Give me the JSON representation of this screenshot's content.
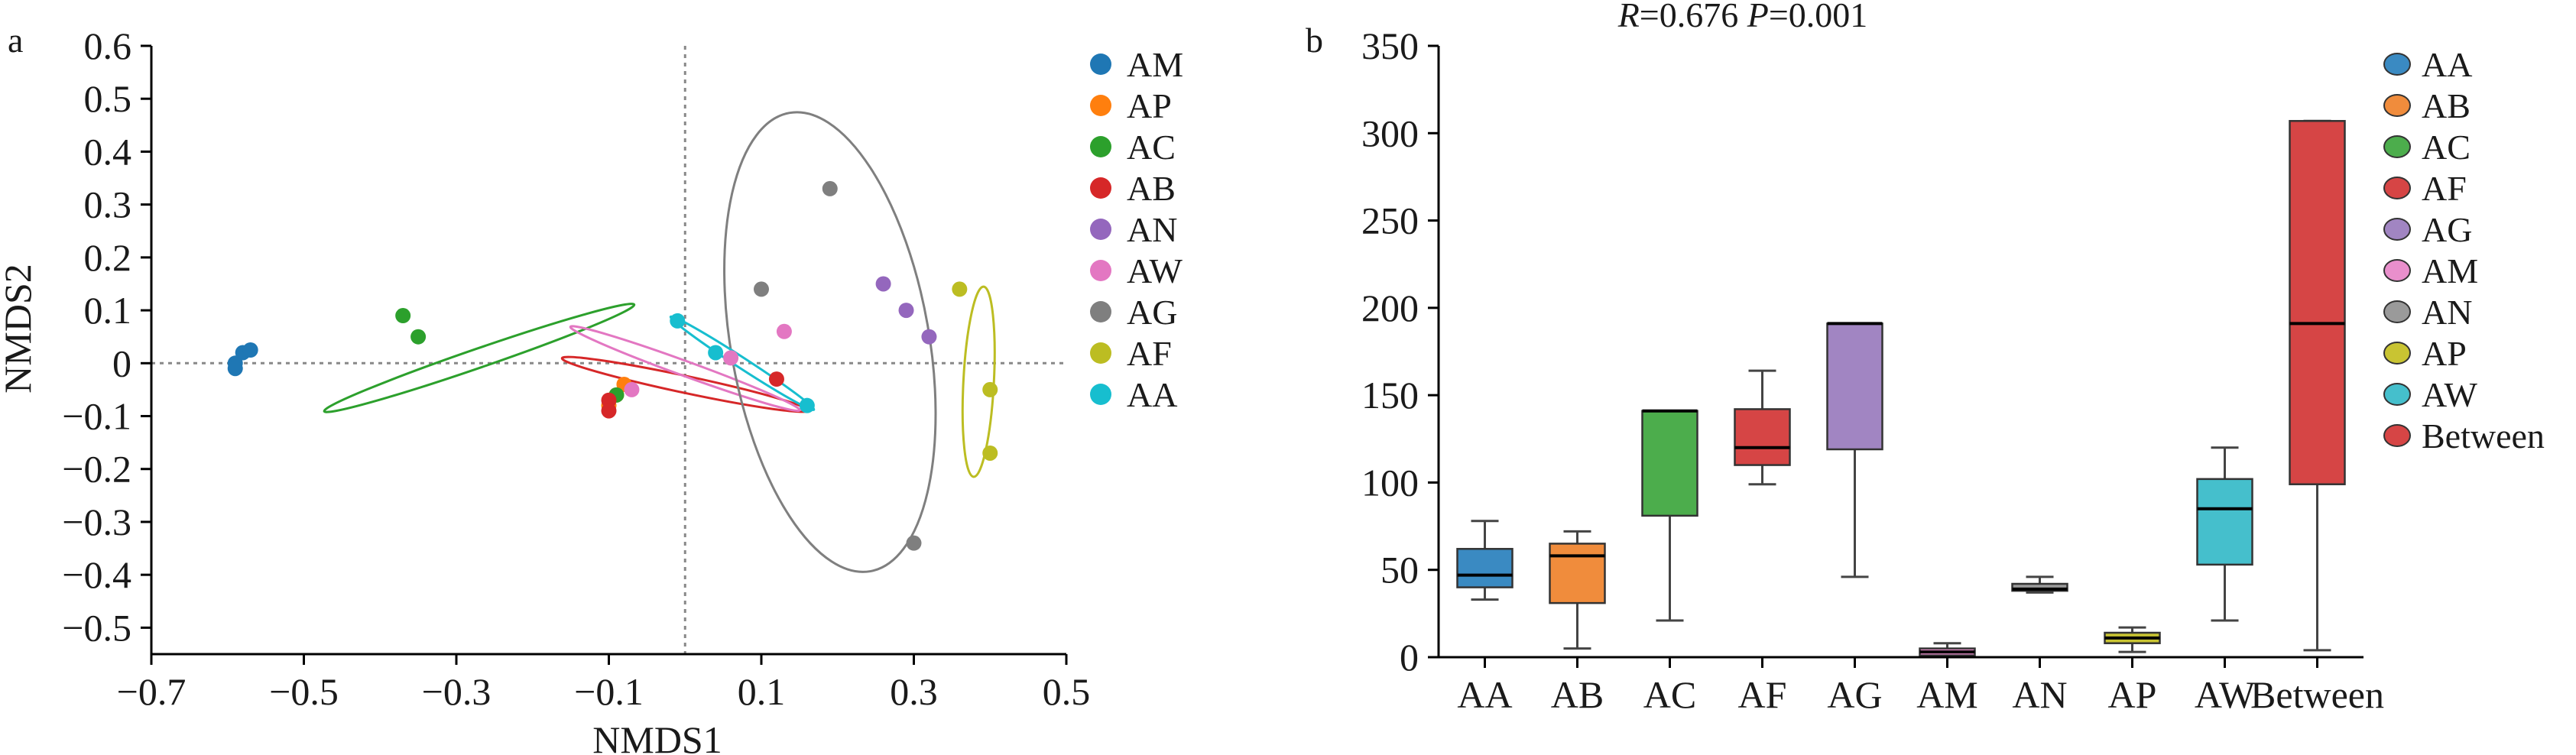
{
  "chart_data": [
    {
      "panel_label": "a",
      "type": "scatter",
      "xlabel": "NMDS1",
      "ylabel": "NMDS2",
      "xlim": [
        -0.7,
        0.5
      ],
      "ylim": [
        -0.55,
        0.6
      ],
      "xticks": [
        -0.7,
        -0.5,
        -0.3,
        -0.1,
        0.1,
        0.3,
        0.5
      ],
      "xtick_labels": [
        "−0.7",
        "−0.5",
        "−0.3",
        "−0.1",
        "0.1",
        "0.3",
        "0.5"
      ],
      "yticks": [
        0.6,
        0.5,
        0.4,
        0.3,
        0.2,
        0.1,
        0,
        -0.1,
        -0.2,
        -0.3,
        -0.4,
        -0.5
      ],
      "ytick_labels": [
        "0.6",
        "0.5",
        "0.4",
        "0.3",
        "0.2",
        "0.1",
        "0",
        "−0.1",
        "−0.2",
        "−0.3",
        "−0.4",
        "−0.5"
      ],
      "reference_lines": {
        "x": 0,
        "y": 0
      },
      "legend_position": "right",
      "series": [
        {
          "name": "AM",
          "color": "#1f77b4",
          "points": [
            [
              -0.58,
              0.02
            ],
            [
              -0.59,
              0.0
            ],
            [
              -0.59,
              -0.01
            ],
            [
              -0.57,
              0.025
            ]
          ],
          "ellipse": null
        },
        {
          "name": "AP",
          "color": "#ff7f0e",
          "points": [
            [
              -0.08,
              -0.04
            ],
            [
              -0.09,
              -0.06
            ],
            [
              -0.1,
              -0.08
            ]
          ],
          "ellipse": null
        },
        {
          "name": "AC",
          "color": "#2ca02c",
          "points": [
            [
              -0.37,
              0.09
            ],
            [
              -0.35,
              0.05
            ],
            [
              -0.09,
              -0.06
            ]
          ],
          "ellipse": {
            "cx": -0.27,
            "cy": 0.01,
            "rx": 0.215,
            "ry": 0.018,
            "angle_deg": 19
          }
        },
        {
          "name": "AB",
          "color": "#d62728",
          "points": [
            [
              -0.1,
              -0.07
            ],
            [
              -0.1,
              -0.09
            ],
            [
              0.12,
              -0.03
            ]
          ],
          "ellipse": {
            "cx": 0.0,
            "cy": -0.04,
            "rx": 0.165,
            "ry": 0.016,
            "angle_deg": -12
          }
        },
        {
          "name": "AN",
          "color": "#9467bd",
          "points": [
            [
              0.26,
              0.15
            ],
            [
              0.29,
              0.1
            ],
            [
              0.32,
              0.05
            ]
          ],
          "ellipse": null
        },
        {
          "name": "AW",
          "color": "#e377c2",
          "points": [
            [
              -0.07,
              -0.05
            ],
            [
              0.06,
              0.01
            ],
            [
              0.13,
              0.06
            ]
          ],
          "ellipse": {
            "cx": 0.0,
            "cy": -0.01,
            "rx": 0.16,
            "ry": 0.014,
            "angle_deg": -20
          }
        },
        {
          "name": "AG",
          "color": "#7f7f7f",
          "points": [
            [
              0.19,
              0.33
            ],
            [
              0.1,
              0.14
            ],
            [
              0.3,
              -0.34
            ]
          ],
          "ellipse": {
            "cx": 0.19,
            "cy": 0.04,
            "rx": 0.13,
            "ry": 0.44,
            "angle_deg": 10
          }
        },
        {
          "name": "AF",
          "color": "#bcbd22",
          "points": [
            [
              0.36,
              0.14
            ],
            [
              0.4,
              -0.05
            ],
            [
              0.4,
              -0.17
            ]
          ],
          "ellipse": {
            "cx": 0.385,
            "cy": -0.035,
            "rx": 0.02,
            "ry": 0.18,
            "angle_deg": -3
          }
        },
        {
          "name": "AA",
          "color": "#17becf",
          "points": [
            [
              -0.01,
              0.08
            ],
            [
              0.04,
              0.02
            ],
            [
              0.16,
              -0.08
            ]
          ],
          "ellipse": {
            "cx": 0.075,
            "cy": 0.0,
            "rx": 0.112,
            "ry": 0.01,
            "angle_deg": -33
          }
        }
      ]
    },
    {
      "panel_label": "b",
      "type": "box",
      "title": "R=0.676 P=0.001",
      "title_parts": {
        "r_symbol": "R",
        "r_value": "=0.676 ",
        "p_symbol": "P",
        "p_value": "=0.001"
      },
      "xlabel": "",
      "ylabel": "",
      "ylim": [
        0,
        350
      ],
      "yticks": [
        0,
        50,
        100,
        150,
        200,
        250,
        300,
        350
      ],
      "ytick_labels": [
        "0",
        "50",
        "100",
        "150",
        "200",
        "250",
        "300",
        "350"
      ],
      "categories": [
        "AA",
        "AB",
        "AC",
        "AF",
        "AG",
        "AM",
        "AN",
        "AP",
        "AW",
        "Between"
      ],
      "legend_position": "right",
      "boxes": [
        {
          "name": "AA",
          "color": "#3a8ac2",
          "min": 33,
          "q1": 40,
          "median": 47,
          "q3": 62,
          "max": 78
        },
        {
          "name": "AB",
          "color": "#f08c3c",
          "min": 5,
          "q1": 31,
          "median": 58,
          "q3": 65,
          "max": 72
        },
        {
          "name": "AC",
          "color": "#4cad4c",
          "min": 21,
          "q1": 81,
          "median": 141,
          "q3": 141,
          "max": 141
        },
        {
          "name": "AF",
          "color": "#d64545",
          "min": 99,
          "q1": 110,
          "median": 120,
          "q3": 142,
          "max": 164
        },
        {
          "name": "AG",
          "color": "#a185c2",
          "min": 46,
          "q1": 119,
          "median": 191,
          "q3": 191,
          "max": 191
        },
        {
          "name": "AM",
          "color": "#e98fcc",
          "min": 1,
          "q1": 1,
          "median": 3,
          "q3": 5,
          "max": 8
        },
        {
          "name": "AN",
          "color": "#9a9a9a",
          "min": 37,
          "q1": 38,
          "median": 39,
          "q3": 42,
          "max": 46
        },
        {
          "name": "AP",
          "color": "#c9c432",
          "min": 3,
          "q1": 8,
          "median": 11,
          "q3": 14,
          "max": 17
        },
        {
          "name": "AW",
          "color": "#45bfcc",
          "min": 21,
          "q1": 53,
          "median": 85,
          "q3": 102,
          "max": 120
        },
        {
          "name": "Between",
          "color": "#d64545",
          "min": 4,
          "q1": 99,
          "median": 191,
          "q3": 307,
          "max": 307
        }
      ]
    }
  ]
}
